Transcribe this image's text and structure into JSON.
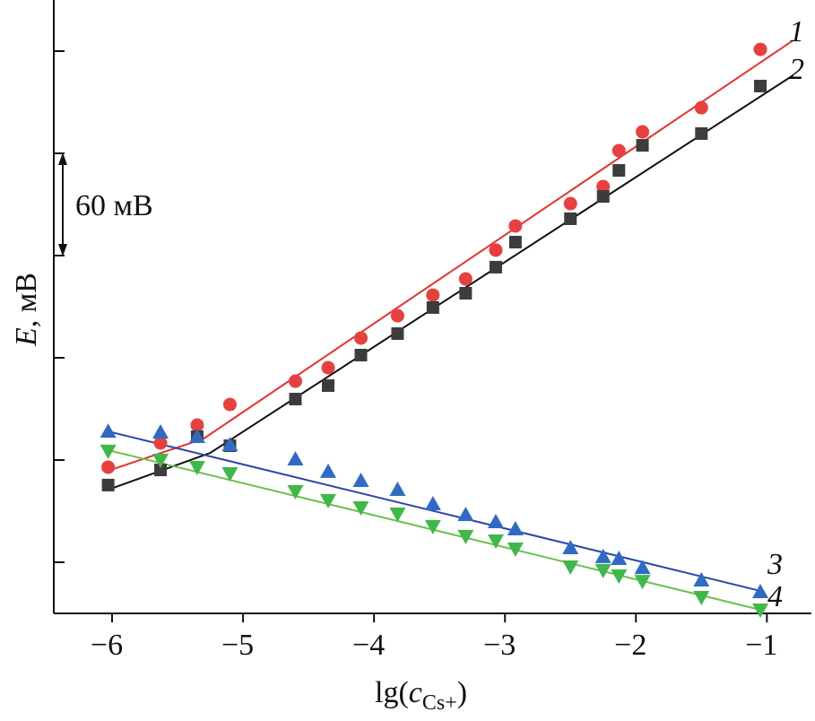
{
  "chart_data": {
    "type": "scatter",
    "title": "",
    "xlabel_main": "lg(c",
    "xlabel_sub": "Cs+",
    "xlabel_close": ")",
    "ylabel_italic": "E",
    "ylabel_rest": ", мВ",
    "scale_bar_label": "60 мВ",
    "scale_bar_value_mV": 60,
    "xlim": [
      -6.445,
      -0.66
    ],
    "ylim": [
      -30,
      330
    ],
    "xticks": [
      -6,
      -5,
      -4,
      -3,
      -2,
      -1
    ],
    "xtick_labels": [
      "−6",
      "−5",
      "−4",
      "−3",
      "−2",
      "−1"
    ],
    "yticks": [
      0,
      60,
      120,
      180,
      240,
      300
    ],
    "grid": false,
    "x": [
      -6.03,
      -5.63,
      -5.35,
      -5.1,
      -4.6,
      -4.35,
      -4.1,
      -3.82,
      -3.55,
      -3.3,
      -3.07,
      -2.92,
      -2.5,
      -2.25,
      -2.13,
      -1.95,
      -1.5,
      -1.05
    ],
    "series": [
      {
        "name": "1",
        "marker": "circle",
        "color": "#e8403f",
        "line_color": "#e8312e",
        "values": [
          55.8,
          70,
          80.5,
          92.6,
          106.3,
          114.2,
          131.6,
          144.7,
          156.8,
          166.3,
          183.2,
          197.4,
          210.5,
          220.5,
          241.6,
          252.6,
          266.8,
          301
        ],
        "fit": [
          [
            -6.03,
            53.7
          ],
          [
            -5.3,
            72.6
          ],
          [
            -0.8,
            306.3
          ]
        ]
      },
      {
        "name": "2",
        "marker": "square",
        "color": "#3c3c3c",
        "line_color": "#111111",
        "values": [
          45.3,
          54.2,
          73.7,
          68.4,
          95.8,
          103.7,
          121.6,
          134.2,
          149.5,
          157.9,
          173.2,
          187.9,
          201.6,
          214.7,
          230,
          244.7,
          251.6,
          279.5
        ],
        "fit": [
          [
            -6.03,
            42.6
          ],
          [
            -5.25,
            64.2
          ],
          [
            -0.8,
            285.8
          ]
        ]
      },
      {
        "name": "3",
        "marker": "triangle-up",
        "color": "#2f6bc4",
        "line_color": "#2a45a8",
        "values": [
          76.8,
          76.3,
          73.7,
          68.9,
          60.5,
          53.2,
          47.9,
          42.6,
          34.2,
          27.9,
          23.7,
          19.5,
          8.4,
          3.2,
          2.1,
          -3.2,
          -10.5,
          -17.4
        ],
        "fit": [
          [
            -6.03,
            76.8
          ],
          [
            -1.05,
            -16.8
          ]
        ]
      },
      {
        "name": "4",
        "marker": "triangle-down",
        "color": "#3fb84a",
        "line_color": "#6cc24a",
        "values": [
          65.3,
          60,
          55.8,
          52.1,
          41.6,
          36.3,
          32.1,
          28.4,
          21.1,
          15.3,
          12.6,
          7.9,
          -2.6,
          -4.7,
          -7.9,
          -11.1,
          -20.5,
          -27.9
        ],
        "fit": [
          [
            -6.03,
            65.8
          ],
          [
            -1.05,
            -27.9
          ]
        ]
      }
    ]
  }
}
